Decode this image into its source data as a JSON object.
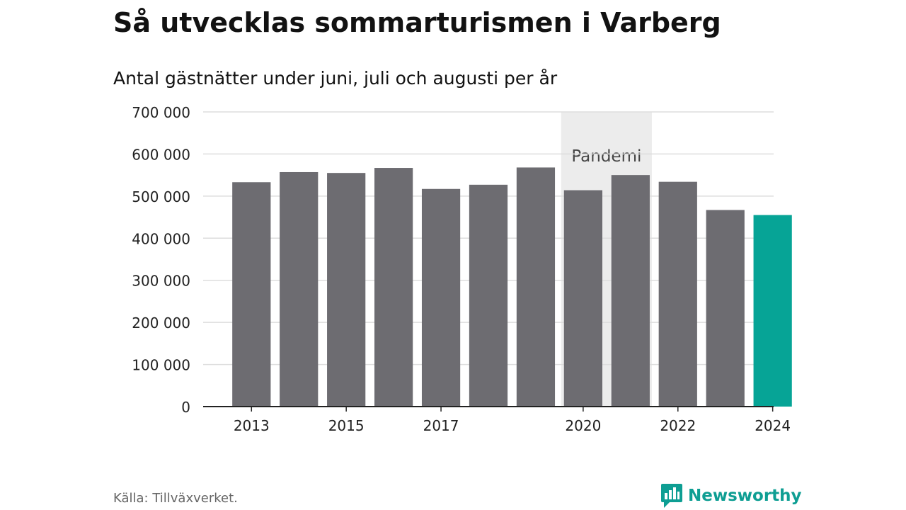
{
  "header": {
    "title": "Så utvecklas sommarturismen i Varberg",
    "subtitle": "Antal gästnätter under juni, juli och augusti per år"
  },
  "footer": {
    "source": "Källa: Tillväxverket.",
    "brand": "Newsworthy"
  },
  "colors": {
    "bar": "#6d6c71",
    "highlight": "#06a496",
    "pandemic_band": "#ececec",
    "gridline": "#dddddd",
    "axis": "#222222",
    "brand": "#0e9e93"
  },
  "chart_data": {
    "type": "bar",
    "title": "Så utvecklas sommarturismen i Varberg",
    "subtitle": "Antal gästnätter under juni, juli och augusti per år",
    "categories": [
      "2013",
      "2014",
      "2015",
      "2016",
      "2017",
      "2018",
      "2019",
      "2020",
      "2021",
      "2022",
      "2023",
      "2024"
    ],
    "values": [
      533000,
      557000,
      555000,
      567000,
      517000,
      527000,
      568000,
      514000,
      550000,
      534000,
      467000,
      455000
    ],
    "x_tick_labels": [
      "2013",
      "2015",
      "2017",
      "2020",
      "2022",
      "2024"
    ],
    "y_ticks": [
      0,
      100000,
      200000,
      300000,
      400000,
      500000,
      600000,
      700000
    ],
    "y_tick_labels": [
      "0",
      "100 000",
      "200 000",
      "300 000",
      "400 000",
      "500 000",
      "600 000",
      "700 000"
    ],
    "ylim": [
      0,
      700000
    ],
    "highlight_category": "2024",
    "grid": true,
    "annotation": {
      "label": "Pandemi",
      "from": "2020",
      "to": "2021"
    }
  }
}
